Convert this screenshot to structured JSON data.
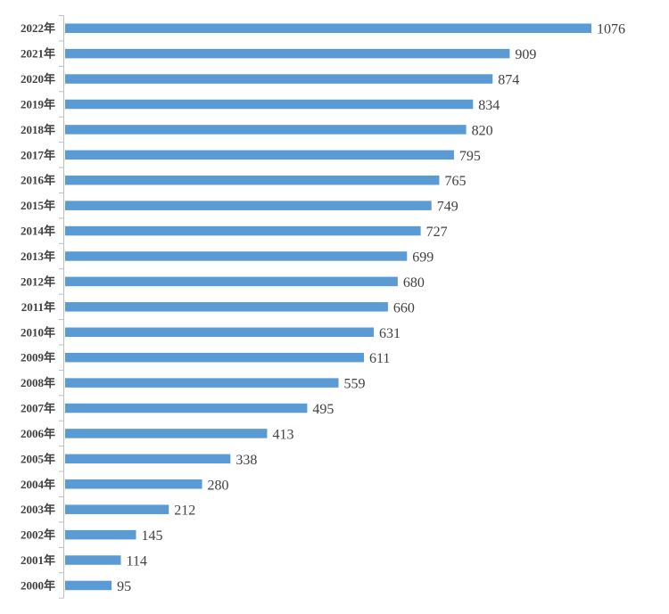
{
  "chart_data": {
    "type": "bar",
    "orientation": "horizontal",
    "categories": [
      "2022年",
      "2021年",
      "2020年",
      "2019年",
      "2018年",
      "2017年",
      "2016年",
      "2015年",
      "2014年",
      "2013年",
      "2012年",
      "2011年",
      "2010年",
      "2009年",
      "2008年",
      "2007年",
      "2006年",
      "2005年",
      "2004年",
      "2003年",
      "2002年",
      "2001年",
      "2000年"
    ],
    "values": [
      1076,
      909,
      874,
      834,
      820,
      795,
      765,
      749,
      727,
      699,
      680,
      660,
      631,
      611,
      559,
      495,
      413,
      338,
      280,
      212,
      145,
      114,
      95
    ],
    "title": "",
    "xlabel": "",
    "ylabel": "",
    "xlim": [
      0,
      1076
    ],
    "grid": false,
    "legend": "none",
    "data_labels": true,
    "bar_color": "#5b9bd5"
  }
}
